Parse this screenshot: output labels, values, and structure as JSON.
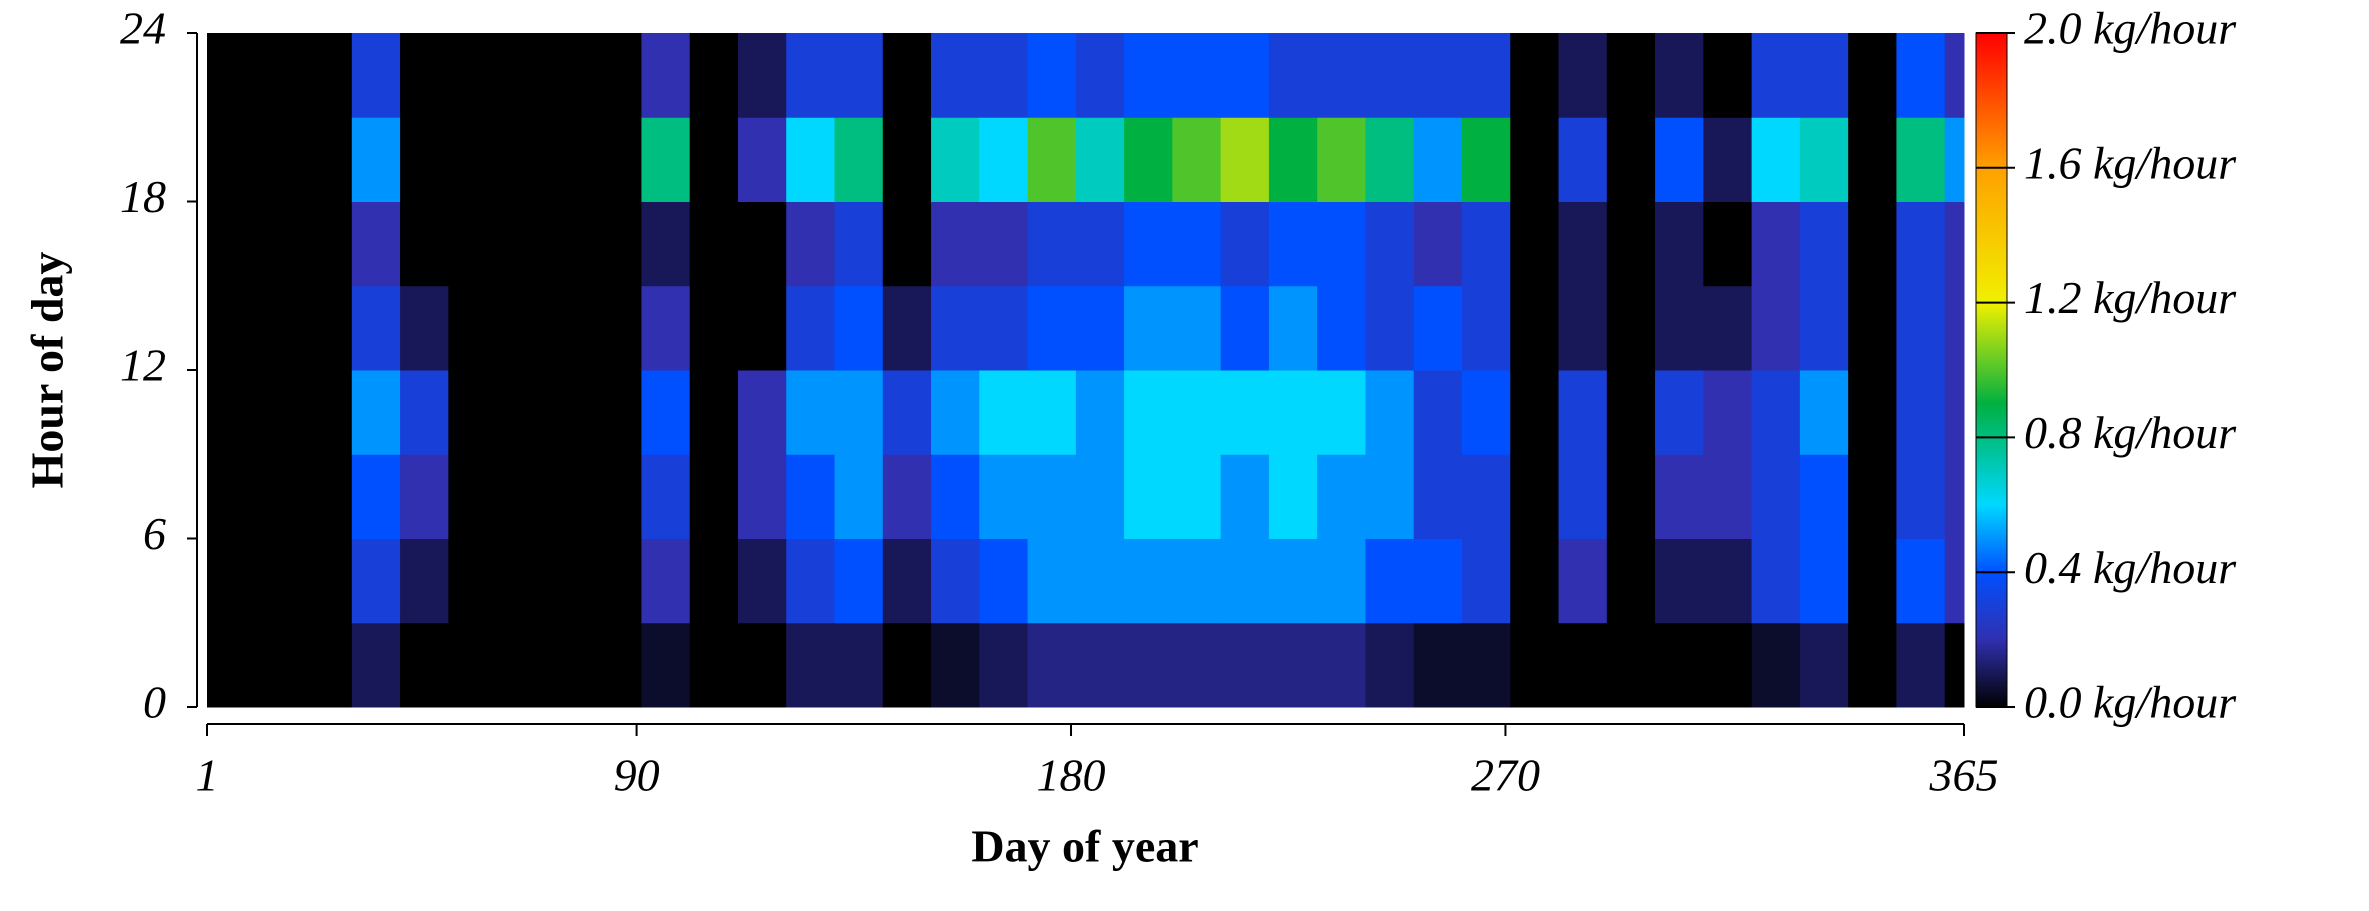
{
  "chart_data": {
    "type": "heatmap",
    "xlabel": "Day of year",
    "ylabel": "Hour of day",
    "xlim": [
      1,
      365
    ],
    "xticks": [
      1,
      90,
      180,
      270,
      365
    ],
    "ylim": [
      0,
      24
    ],
    "yticks": [
      0,
      6,
      12,
      18,
      24
    ],
    "x_edges": [
      1,
      11,
      21,
      31,
      41,
      51,
      61,
      71,
      81,
      91,
      101,
      111,
      121,
      131,
      141,
      151,
      161,
      171,
      181,
      191,
      201,
      211,
      221,
      231,
      241,
      251,
      261,
      271,
      281,
      291,
      301,
      311,
      321,
      331,
      341,
      351,
      361,
      365
    ],
    "y_edges": [
      0,
      3,
      6,
      9,
      12,
      15,
      18,
      21,
      24
    ],
    "values": [
      [
        0,
        0,
        0,
        0,
        0,
        0,
        0,
        0
      ],
      [
        0,
        0,
        0,
        0,
        0,
        0,
        0,
        0
      ],
      [
        0,
        0,
        0,
        0,
        0,
        0,
        0,
        0
      ],
      [
        0.1,
        0.3,
        0.4,
        0.5,
        0.3,
        0.2,
        0.5,
        0.3
      ],
      [
        0,
        0.1,
        0.2,
        0.3,
        0.1,
        0,
        0,
        0
      ],
      [
        0,
        0,
        0,
        0,
        0,
        0,
        0,
        0
      ],
      [
        0,
        0,
        0,
        0,
        0,
        0,
        0,
        0
      ],
      [
        0,
        0,
        0,
        0,
        0,
        0,
        0,
        0
      ],
      [
        0,
        0,
        0,
        0,
        0,
        0,
        0,
        0
      ],
      [
        0.05,
        0.2,
        0.3,
        0.4,
        0.2,
        0.1,
        0.8,
        0.2
      ],
      [
        0,
        0,
        0,
        0,
        0,
        0,
        0,
        0
      ],
      [
        0,
        0.1,
        0.2,
        0.2,
        0,
        0,
        0.2,
        0.1
      ],
      [
        0.1,
        0.3,
        0.4,
        0.5,
        0.3,
        0.2,
        0.6,
        0.3
      ],
      [
        0.1,
        0.4,
        0.5,
        0.5,
        0.4,
        0.3,
        0.8,
        0.3
      ],
      [
        0,
        0.1,
        0.2,
        0.3,
        0.1,
        0,
        0,
        0
      ],
      [
        0.05,
        0.3,
        0.4,
        0.5,
        0.3,
        0.2,
        0.7,
        0.3
      ],
      [
        0.1,
        0.4,
        0.5,
        0.6,
        0.3,
        0.2,
        0.6,
        0.3
      ],
      [
        0.15,
        0.5,
        0.5,
        0.6,
        0.4,
        0.3,
        1.0,
        0.4
      ],
      [
        0.15,
        0.5,
        0.5,
        0.5,
        0.4,
        0.3,
        0.7,
        0.3
      ],
      [
        0.15,
        0.5,
        0.6,
        0.6,
        0.5,
        0.4,
        0.9,
        0.4
      ],
      [
        0.15,
        0.5,
        0.6,
        0.6,
        0.5,
        0.4,
        1.0,
        0.4
      ],
      [
        0.15,
        0.5,
        0.5,
        0.6,
        0.4,
        0.3,
        1.1,
        0.4
      ],
      [
        0.15,
        0.5,
        0.6,
        0.6,
        0.5,
        0.4,
        0.9,
        0.3
      ],
      [
        0.15,
        0.5,
        0.5,
        0.6,
        0.4,
        0.4,
        1.0,
        0.3
      ],
      [
        0.1,
        0.4,
        0.5,
        0.5,
        0.3,
        0.3,
        0.8,
        0.3
      ],
      [
        0.05,
        0.4,
        0.3,
        0.3,
        0.4,
        0.2,
        0.5,
        0.3
      ],
      [
        0.05,
        0.3,
        0.3,
        0.4,
        0.3,
        0.3,
        0.9,
        0.3
      ],
      [
        0,
        0,
        0,
        0,
        0,
        0,
        0,
        0
      ],
      [
        0,
        0.2,
        0.3,
        0.3,
        0.1,
        0.1,
        0.3,
        0.1
      ],
      [
        0,
        0,
        0,
        0,
        0,
        0,
        0,
        0
      ],
      [
        0,
        0.1,
        0.2,
        0.3,
        0.1,
        0.1,
        0.4,
        0.1
      ],
      [
        0,
        0.1,
        0.2,
        0.2,
        0.1,
        0,
        0.1,
        0
      ],
      [
        0.05,
        0.3,
        0.3,
        0.3,
        0.2,
        0.2,
        0.6,
        0.3
      ],
      [
        0.1,
        0.4,
        0.4,
        0.5,
        0.3,
        0.3,
        0.7,
        0.3
      ],
      [
        0,
        0,
        0,
        0,
        0,
        0,
        0,
        0
      ],
      [
        0.1,
        0.4,
        0.3,
        0.3,
        0.3,
        0.3,
        0.8,
        0.4
      ],
      [
        0,
        0.2,
        0.2,
        0.2,
        0.2,
        0.2,
        0.5,
        0.2
      ]
    ],
    "zlim": [
      0,
      2
    ],
    "zticks": [
      {
        "value": 0,
        "label": "0.0 kg/hour"
      },
      {
        "value": 0.4,
        "label": "0.4 kg/hour"
      },
      {
        "value": 0.8,
        "label": "0.8 kg/hour"
      },
      {
        "value": 1.2,
        "label": "1.2 kg/hour"
      },
      {
        "value": 1.6,
        "label": "1.6 kg/hour"
      },
      {
        "value": 2,
        "label": "2.0 kg/hour"
      }
    ],
    "colorscale": [
      [
        0,
        "#000000"
      ],
      [
        0.2,
        "#3030b0"
      ],
      [
        0.4,
        "#0050ff"
      ],
      [
        0.6,
        "#00d8ff"
      ],
      [
        0.9,
        "#00b040"
      ],
      [
        1.2,
        "#f0f000"
      ],
      [
        1.6,
        "#ffa000"
      ],
      [
        2,
        "#ff0000"
      ]
    ]
  }
}
